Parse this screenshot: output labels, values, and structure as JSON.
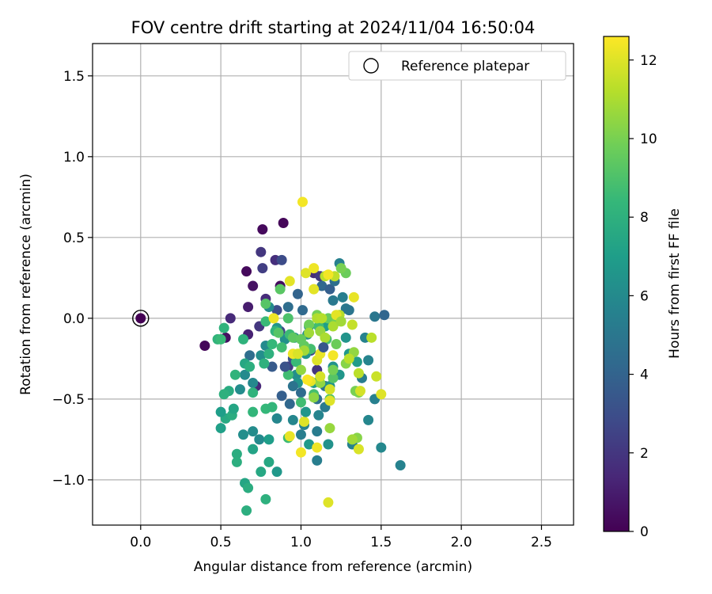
{
  "chart_data": {
    "type": "scatter",
    "title": "FOV centre drift starting at 2024/11/04 16:50:04",
    "xlabel": "Angular distance from reference (arcmin)",
    "ylabel": "Rotation from reference (arcmin)",
    "xlim": [
      -0.3,
      2.7
    ],
    "ylim": [
      -1.28,
      1.7
    ],
    "x_ticks": [
      {
        "value": 0.0,
        "label": "0.0"
      },
      {
        "value": 0.5,
        "label": "0.5"
      },
      {
        "value": 1.0,
        "label": "1.0"
      },
      {
        "value": 1.5,
        "label": "1.5"
      },
      {
        "value": 2.0,
        "label": "2.0"
      },
      {
        "value": 2.5,
        "label": "2.5"
      }
    ],
    "y_ticks": [
      {
        "value": -1.0,
        "label": "−1.0"
      },
      {
        "value": -0.5,
        "label": "−0.5"
      },
      {
        "value": 0.0,
        "label": "0.0"
      },
      {
        "value": 0.5,
        "label": "0.5"
      },
      {
        "value": 1.0,
        "label": "1.0"
      },
      {
        "value": 1.5,
        "label": "1.5"
      }
    ],
    "grid": true,
    "legend": {
      "placement": "top-right",
      "label": "Reference platepar"
    },
    "reference_point": {
      "x": 0.0,
      "y": 0.0
    },
    "colorbar": {
      "label": "Hours from first FF file",
      "min": 0,
      "max": 12.6,
      "ticks": [
        {
          "value": 0,
          "label": "0"
        },
        {
          "value": 2,
          "label": "2"
        },
        {
          "value": 4,
          "label": "4"
        },
        {
          "value": 6,
          "label": "6"
        },
        {
          "value": 8,
          "label": "8"
        },
        {
          "value": 10,
          "label": "10"
        },
        {
          "value": 12,
          "label": "12"
        }
      ],
      "colormap": "viridis"
    },
    "points": [
      {
        "x": 0.4,
        "y": -0.17,
        "h": 0.2
      },
      {
        "x": 0.53,
        "y": -0.12,
        "h": 0.5
      },
      {
        "x": 0.56,
        "y": 0.0,
        "h": 1.5
      },
      {
        "x": 0.66,
        "y": 0.29,
        "h": 0.3
      },
      {
        "x": 0.7,
        "y": 0.2,
        "h": 0.6
      },
      {
        "x": 0.76,
        "y": 0.55,
        "h": 0.3
      },
      {
        "x": 0.89,
        "y": 0.59,
        "h": 0.2
      },
      {
        "x": 0.75,
        "y": 0.41,
        "h": 2.0
      },
      {
        "x": 0.76,
        "y": 0.31,
        "h": 2.3
      },
      {
        "x": 0.84,
        "y": 0.36,
        "h": 1.7
      },
      {
        "x": 0.88,
        "y": 0.36,
        "h": 2.9
      },
      {
        "x": 0.87,
        "y": 0.2,
        "h": 0.4
      },
      {
        "x": 0.67,
        "y": 0.07,
        "h": 1.0
      },
      {
        "x": 0.78,
        "y": 0.12,
        "h": 1.6
      },
      {
        "x": 0.67,
        "y": -0.1,
        "h": 1.2
      },
      {
        "x": 0.74,
        "y": -0.05,
        "h": 2.0
      },
      {
        "x": 0.72,
        "y": -0.42,
        "h": 1.4
      },
      {
        "x": 0.85,
        "y": 0.05,
        "h": 3.0
      },
      {
        "x": 0.87,
        "y": -0.08,
        "h": 2.6
      },
      {
        "x": 0.92,
        "y": -0.3,
        "h": 2.2
      },
      {
        "x": 0.95,
        "y": -0.25,
        "h": 3.1
      },
      {
        "x": 1.08,
        "y": 0.28,
        "h": 1.6
      },
      {
        "x": 1.12,
        "y": 0.26,
        "h": 2.1
      },
      {
        "x": 1.06,
        "y": -0.2,
        "h": 2.5
      },
      {
        "x": 1.1,
        "y": -0.32,
        "h": 1.9
      },
      {
        "x": 0.98,
        "y": 0.15,
        "h": 4.0
      },
      {
        "x": 1.01,
        "y": 0.05,
        "h": 4.3
      },
      {
        "x": 0.92,
        "y": 0.07,
        "h": 4.5
      },
      {
        "x": 0.68,
        "y": -0.23,
        "h": 4.5
      },
      {
        "x": 0.82,
        "y": -0.3,
        "h": 3.6
      },
      {
        "x": 0.88,
        "y": -0.48,
        "h": 3.8
      },
      {
        "x": 0.93,
        "y": -0.53,
        "h": 4.2
      },
      {
        "x": 1.0,
        "y": -0.46,
        "h": 4.4
      },
      {
        "x": 1.1,
        "y": -0.5,
        "h": 4.6
      },
      {
        "x": 1.15,
        "y": -0.42,
        "h": 4.8
      },
      {
        "x": 1.13,
        "y": 0.2,
        "h": 4.2
      },
      {
        "x": 1.18,
        "y": 0.18,
        "h": 3.8
      },
      {
        "x": 1.21,
        "y": 0.23,
        "h": 4.6
      },
      {
        "x": 1.24,
        "y": 0.34,
        "h": 5.5
      },
      {
        "x": 1.26,
        "y": 0.13,
        "h": 5.4
      },
      {
        "x": 1.28,
        "y": 0.06,
        "h": 5.0
      },
      {
        "x": 1.3,
        "y": 0.05,
        "h": 4.9
      },
      {
        "x": 1.2,
        "y": 0.11,
        "h": 5.1
      },
      {
        "x": 1.46,
        "y": 0.01,
        "h": 5.0
      },
      {
        "x": 1.52,
        "y": 0.02,
        "h": 4.1
      },
      {
        "x": 1.4,
        "y": -0.12,
        "h": 5.6
      },
      {
        "x": 1.42,
        "y": -0.26,
        "h": 5.7
      },
      {
        "x": 1.38,
        "y": -0.37,
        "h": 5.3
      },
      {
        "x": 1.46,
        "y": -0.5,
        "h": 5.5
      },
      {
        "x": 1.42,
        "y": -0.63,
        "h": 5.8
      },
      {
        "x": 1.5,
        "y": -0.8,
        "h": 5.9
      },
      {
        "x": 1.62,
        "y": -0.91,
        "h": 5.6
      },
      {
        "x": 1.32,
        "y": -0.78,
        "h": 5.6
      },
      {
        "x": 1.15,
        "y": -0.55,
        "h": 5.2
      },
      {
        "x": 1.11,
        "y": -0.6,
        "h": 5.7
      },
      {
        "x": 1.1,
        "y": -0.7,
        "h": 5.3
      },
      {
        "x": 1.1,
        "y": -0.88,
        "h": 5.4
      },
      {
        "x": 1.0,
        "y": -0.72,
        "h": 5.4
      },
      {
        "x": 1.02,
        "y": -0.66,
        "h": 5.6
      },
      {
        "x": 0.95,
        "y": -0.63,
        "h": 5.8
      },
      {
        "x": 0.85,
        "y": -0.62,
        "h": 5.8
      },
      {
        "x": 0.64,
        "y": -0.72,
        "h": 6.2
      },
      {
        "x": 0.7,
        "y": -0.7,
        "h": 6.1
      },
      {
        "x": 0.74,
        "y": -0.75,
        "h": 6.0
      },
      {
        "x": 0.62,
        "y": -0.44,
        "h": 6.1
      },
      {
        "x": 0.7,
        "y": -0.4,
        "h": 5.9
      },
      {
        "x": 0.65,
        "y": -0.35,
        "h": 6.0
      },
      {
        "x": 0.75,
        "y": -0.23,
        "h": 6.2
      },
      {
        "x": 0.78,
        "y": -0.17,
        "h": 6.0
      },
      {
        "x": 0.8,
        "y": 0.07,
        "h": 6.0
      },
      {
        "x": 0.85,
        "y": -0.06,
        "h": 6.5
      },
      {
        "x": 0.9,
        "y": -0.13,
        "h": 6.3
      },
      {
        "x": 0.96,
        "y": -0.12,
        "h": 6.4
      },
      {
        "x": 0.97,
        "y": -0.35,
        "h": 6.2
      },
      {
        "x": 0.98,
        "y": -0.4,
        "h": 6.5
      },
      {
        "x": 1.03,
        "y": -0.22,
        "h": 6.5
      },
      {
        "x": 1.04,
        "y": -0.1,
        "h": 6.3
      },
      {
        "x": 1.05,
        "y": -0.05,
        "h": 6.0
      },
      {
        "x": 1.08,
        "y": -0.4,
        "h": 6.8
      },
      {
        "x": 1.2,
        "y": -0.3,
        "h": 6.4
      },
      {
        "x": 1.24,
        "y": -0.35,
        "h": 6.6
      },
      {
        "x": 1.3,
        "y": -0.22,
        "h": 6.7
      },
      {
        "x": 1.35,
        "y": -0.27,
        "h": 6.9
      },
      {
        "x": 1.28,
        "y": -0.12,
        "h": 6.5
      },
      {
        "x": 1.17,
        "y": -0.03,
        "h": 6.9
      },
      {
        "x": 1.15,
        "y": -0.05,
        "h": 7.0
      },
      {
        "x": 1.18,
        "y": -0.42,
        "h": 6.5
      },
      {
        "x": 1.17,
        "y": -0.78,
        "h": 6.4
      },
      {
        "x": 1.05,
        "y": -0.78,
        "h": 6.8
      },
      {
        "x": 0.8,
        "y": -0.75,
        "h": 7.0
      },
      {
        "x": 0.7,
        "y": -0.81,
        "h": 7.3
      },
      {
        "x": 0.85,
        "y": -0.95,
        "h": 6.7
      },
      {
        "x": 0.8,
        "y": -0.89,
        "h": 7.5
      },
      {
        "x": 0.75,
        "y": -0.95,
        "h": 7.5
      },
      {
        "x": 0.65,
        "y": -1.02,
        "h": 7.4
      },
      {
        "x": 0.67,
        "y": -1.05,
        "h": 7.8
      },
      {
        "x": 0.66,
        "y": -1.19,
        "h": 7.9
      },
      {
        "x": 0.78,
        "y": -1.12,
        "h": 8.0
      },
      {
        "x": 0.6,
        "y": -0.84,
        "h": 7.8
      },
      {
        "x": 0.6,
        "y": -0.89,
        "h": 7.9
      },
      {
        "x": 0.53,
        "y": -0.62,
        "h": 7.6
      },
      {
        "x": 0.57,
        "y": -0.6,
        "h": 7.8
      },
      {
        "x": 0.5,
        "y": -0.58,
        "h": 7.0
      },
      {
        "x": 0.5,
        "y": -0.68,
        "h": 7.1
      },
      {
        "x": 0.58,
        "y": -0.56,
        "h": 7.4
      },
      {
        "x": 0.55,
        "y": -0.45,
        "h": 7.7
      },
      {
        "x": 0.52,
        "y": -0.47,
        "h": 8.0
      },
      {
        "x": 0.59,
        "y": -0.35,
        "h": 8.2
      },
      {
        "x": 0.65,
        "y": -0.28,
        "h": 7.5
      },
      {
        "x": 0.68,
        "y": -0.3,
        "h": 7.9
      },
      {
        "x": 0.7,
        "y": -0.46,
        "h": 8.1
      },
      {
        "x": 0.64,
        "y": -0.13,
        "h": 8.1
      },
      {
        "x": 0.48,
        "y": -0.13,
        "h": 8.2
      },
      {
        "x": 0.52,
        "y": -0.06,
        "h": 8.1
      },
      {
        "x": 0.5,
        "y": -0.13,
        "h": 8.5
      },
      {
        "x": 0.7,
        "y": -0.58,
        "h": 8.3
      },
      {
        "x": 0.78,
        "y": -0.56,
        "h": 8.4
      },
      {
        "x": 0.82,
        "y": -0.55,
        "h": 8.3
      },
      {
        "x": 0.77,
        "y": -0.28,
        "h": 8.0
      },
      {
        "x": 0.8,
        "y": -0.22,
        "h": 8.0
      },
      {
        "x": 0.82,
        "y": -0.16,
        "h": 8.4
      },
      {
        "x": 0.78,
        "y": -0.02,
        "h": 8.5
      },
      {
        "x": 0.84,
        "y": -0.08,
        "h": 8.2
      },
      {
        "x": 0.88,
        "y": -0.18,
        "h": 8.7
      },
      {
        "x": 0.92,
        "y": -0.35,
        "h": 8.7
      },
      {
        "x": 0.97,
        "y": -0.27,
        "h": 8.5
      },
      {
        "x": 0.92,
        "y": -0.74,
        "h": 8.6
      },
      {
        "x": 1.0,
        "y": -0.52,
        "h": 8.7
      },
      {
        "x": 1.08,
        "y": -0.47,
        "h": 8.8
      },
      {
        "x": 1.06,
        "y": -0.19,
        "h": 8.8
      },
      {
        "x": 1.11,
        "y": -0.05,
        "h": 8.7
      },
      {
        "x": 1.16,
        "y": -0.13,
        "h": 8.9
      },
      {
        "x": 1.2,
        "y": -0.37,
        "h": 9.2
      },
      {
        "x": 1.18,
        "y": -0.5,
        "h": 9.0
      },
      {
        "x": 0.93,
        "y": -0.1,
        "h": 8.6
      },
      {
        "x": 0.92,
        "y": 0.0,
        "h": 9.0
      },
      {
        "x": 0.87,
        "y": 0.18,
        "h": 9.3
      },
      {
        "x": 0.78,
        "y": 0.09,
        "h": 9.2
      },
      {
        "x": 0.86,
        "y": -0.09,
        "h": 9.2
      },
      {
        "x": 0.95,
        "y": -0.12,
        "h": 9.4
      },
      {
        "x": 1.0,
        "y": -0.13,
        "h": 9.5
      },
      {
        "x": 1.02,
        "y": -0.17,
        "h": 9.5
      },
      {
        "x": 1.05,
        "y": -0.04,
        "h": 9.8
      },
      {
        "x": 1.1,
        "y": 0.02,
        "h": 9.9
      },
      {
        "x": 1.17,
        "y": 0.0,
        "h": 9.6
      },
      {
        "x": 1.22,
        "y": -0.02,
        "h": 9.9
      },
      {
        "x": 1.28,
        "y": 0.28,
        "h": 9.7
      },
      {
        "x": 1.25,
        "y": 0.31,
        "h": 10.0
      },
      {
        "x": 1.22,
        "y": -0.16,
        "h": 9.7
      },
      {
        "x": 1.2,
        "y": -0.32,
        "h": 9.9
      },
      {
        "x": 1.28,
        "y": -0.28,
        "h": 10.3
      },
      {
        "x": 1.33,
        "y": -0.21,
        "h": 10.5
      },
      {
        "x": 1.36,
        "y": -0.46,
        "h": 10.2
      },
      {
        "x": 1.34,
        "y": -0.45,
        "h": 10.0
      },
      {
        "x": 1.35,
        "y": -0.74,
        "h": 10.3
      },
      {
        "x": 1.32,
        "y": -0.75,
        "h": 10.8
      },
      {
        "x": 1.18,
        "y": -0.68,
        "h": 10.6
      },
      {
        "x": 1.12,
        "y": -0.4,
        "h": 10.5
      },
      {
        "x": 1.08,
        "y": -0.49,
        "h": 10.4
      },
      {
        "x": 1.0,
        "y": -0.32,
        "h": 10.5
      },
      {
        "x": 1.02,
        "y": -0.2,
        "h": 10.8
      },
      {
        "x": 1.05,
        "y": -0.09,
        "h": 10.8
      },
      {
        "x": 1.12,
        "y": -0.08,
        "h": 10.6
      },
      {
        "x": 1.15,
        "y": -0.12,
        "h": 11.0
      },
      {
        "x": 1.2,
        "y": -0.05,
        "h": 11.0
      },
      {
        "x": 1.1,
        "y": 0.0,
        "h": 11.1
      },
      {
        "x": 1.13,
        "y": 0.0,
        "h": 11.2
      },
      {
        "x": 1.15,
        "y": 0.26,
        "h": 11.3
      },
      {
        "x": 1.21,
        "y": 0.26,
        "h": 11.4
      },
      {
        "x": 1.24,
        "y": 0.02,
        "h": 11.2
      },
      {
        "x": 1.32,
        "y": -0.04,
        "h": 11.5
      },
      {
        "x": 1.3,
        "y": -0.25,
        "h": 11.3
      },
      {
        "x": 1.36,
        "y": -0.34,
        "h": 11.3
      },
      {
        "x": 1.44,
        "y": -0.12,
        "h": 11.3
      },
      {
        "x": 1.47,
        "y": -0.36,
        "h": 11.6
      },
      {
        "x": 1.5,
        "y": -0.47,
        "h": 12.0
      },
      {
        "x": 1.37,
        "y": -0.45,
        "h": 11.8
      },
      {
        "x": 1.36,
        "y": -0.81,
        "h": 11.9
      },
      {
        "x": 1.17,
        "y": -1.14,
        "h": 12.0
      },
      {
        "x": 1.18,
        "y": -0.51,
        "h": 12.0
      },
      {
        "x": 1.18,
        "y": -0.44,
        "h": 11.8
      },
      {
        "x": 1.12,
        "y": -0.36,
        "h": 11.8
      },
      {
        "x": 1.1,
        "y": -0.26,
        "h": 12.0
      },
      {
        "x": 1.12,
        "y": -0.22,
        "h": 12.2
      },
      {
        "x": 1.1,
        "y": -0.8,
        "h": 12.3
      },
      {
        "x": 1.0,
        "y": -0.83,
        "h": 12.4
      },
      {
        "x": 1.02,
        "y": -0.64,
        "h": 12.0
      },
      {
        "x": 0.93,
        "y": -0.73,
        "h": 12.2
      },
      {
        "x": 0.95,
        "y": -0.22,
        "h": 12.3
      },
      {
        "x": 0.98,
        "y": -0.22,
        "h": 11.9
      },
      {
        "x": 0.93,
        "y": 0.23,
        "h": 12.1
      },
      {
        "x": 1.03,
        "y": 0.28,
        "h": 12.0
      },
      {
        "x": 1.08,
        "y": 0.31,
        "h": 12.3
      },
      {
        "x": 1.08,
        "y": 0.18,
        "h": 12.1
      },
      {
        "x": 1.17,
        "y": 0.27,
        "h": 12.4
      },
      {
        "x": 1.2,
        "y": -0.23,
        "h": 12.4
      },
      {
        "x": 1.33,
        "y": 0.13,
        "h": 12.2
      },
      {
        "x": 1.22,
        "y": 0.02,
        "h": 12.1
      },
      {
        "x": 1.06,
        "y": -0.39,
        "h": 12.2
      },
      {
        "x": 1.04,
        "y": -0.38,
        "h": 12.5
      },
      {
        "x": 0.83,
        "y": 0.0,
        "h": 12.3
      },
      {
        "x": 1.01,
        "y": 0.72,
        "h": 12.4
      },
      {
        "x": 1.25,
        "y": -0.02,
        "h": 10.8
      },
      {
        "x": 0.9,
        "y": -0.3,
        "h": 3.2
      },
      {
        "x": 0.95,
        "y": -0.42,
        "h": 4.8
      },
      {
        "x": 1.03,
        "y": -0.58,
        "h": 6.6
      },
      {
        "x": 1.14,
        "y": -0.18,
        "h": 3.4
      }
    ]
  }
}
